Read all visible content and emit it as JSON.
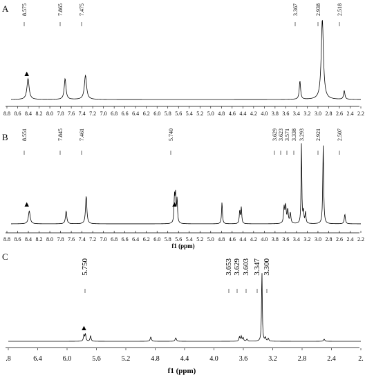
{
  "chart_data": [
    {
      "type": "line",
      "panel_label": "A",
      "xlabel": "",
      "x_range": [
        8.9,
        2.2
      ],
      "x_ticks": [
        "8.8",
        "8.6",
        "8.4",
        "8.2",
        "8.0",
        "7.8",
        "7.6",
        "7.4",
        "7.2",
        "7.0",
        "6.8",
        "6.6",
        "6.4",
        "6.2",
        "6.0",
        "5.8",
        "5.6",
        "5.4",
        "5.2",
        "5.0",
        "4.8",
        "4.6",
        "4.4",
        "4.2",
        "4.0",
        "3.8",
        "3.6",
        "3.4",
        "3.2",
        "3.0",
        "2.8",
        "2.6",
        "2.4",
        "2.2"
      ],
      "peak_labels": [
        "8.575",
        "7.865",
        "7.475",
        "3.367",
        "2.938",
        "2.518"
      ],
      "peaks": [
        {
          "ppm": 8.575,
          "height": 0.26,
          "width": 0.025
        },
        {
          "ppm": 7.865,
          "height": 0.26,
          "width": 0.02
        },
        {
          "ppm": 7.475,
          "height": 0.3,
          "width": 0.025
        },
        {
          "ppm": 3.367,
          "height": 0.23,
          "width": 0.015
        },
        {
          "ppm": 2.938,
          "height": 1.0,
          "width": 0.025
        },
        {
          "ppm": 2.518,
          "height": 0.11,
          "width": 0.015
        }
      ],
      "markers": [
        {
          "symbol": "▲",
          "ppm": 8.6
        }
      ]
    },
    {
      "type": "line",
      "panel_label": "B",
      "xlabel": "f1 (ppm)",
      "x_range": [
        8.9,
        2.2
      ],
      "x_ticks": [
        "8.8",
        "8.6",
        "8.4",
        "8.2",
        "8.0",
        "7.8",
        "7.6",
        "7.4",
        "7.2",
        "7.0",
        "6.8",
        "6.6",
        "6.4",
        "6.2",
        "6.0",
        "5.8",
        "5.6",
        "5.4",
        "5.2",
        "5.0",
        "4.8",
        "4.6",
        "4.4",
        "4.2",
        "4.0",
        "3.8",
        "3.6",
        "3.4",
        "3.2",
        "3.0",
        "2.8",
        "2.6",
        "2.4",
        "2.2"
      ],
      "peak_labels": [
        "8.551",
        "7.845",
        "7.461",
        "5.740",
        "3.629",
        "3.623",
        "3.571",
        "3.338",
        "3.293",
        "2.921",
        "2.507"
      ],
      "peaks": [
        {
          "ppm": 8.551,
          "height": 0.16,
          "width": 0.02
        },
        {
          "ppm": 7.845,
          "height": 0.16,
          "width": 0.015
        },
        {
          "ppm": 7.461,
          "height": 0.35,
          "width": 0.015
        },
        {
          "ppm": 5.77,
          "height": 0.32,
          "width": 0.01
        },
        {
          "ppm": 5.75,
          "height": 0.34,
          "width": 0.01
        },
        {
          "ppm": 5.72,
          "height": 0.3,
          "width": 0.01
        },
        {
          "ppm": 4.86,
          "height": 0.27,
          "width": 0.01
        },
        {
          "ppm": 4.52,
          "height": 0.16,
          "width": 0.01
        },
        {
          "ppm": 4.49,
          "height": 0.2,
          "width": 0.01
        },
        {
          "ppm": 3.67,
          "height": 0.2,
          "width": 0.012
        },
        {
          "ppm": 3.64,
          "height": 0.22,
          "width": 0.012
        },
        {
          "ppm": 3.6,
          "height": 0.17,
          "width": 0.012
        },
        {
          "ppm": 3.55,
          "height": 0.13,
          "width": 0.012
        },
        {
          "ppm": 3.338,
          "height": 1.0,
          "width": 0.008
        },
        {
          "ppm": 3.3,
          "height": 0.15,
          "width": 0.01
        },
        {
          "ppm": 3.26,
          "height": 0.14,
          "width": 0.01
        },
        {
          "ppm": 2.921,
          "height": 0.98,
          "width": 0.01
        },
        {
          "ppm": 2.507,
          "height": 0.12,
          "width": 0.012
        }
      ],
      "markers": [
        {
          "symbol": "▲",
          "ppm": 8.6
        },
        {
          "symbol": "▲",
          "ppm": 5.77
        }
      ]
    },
    {
      "type": "line",
      "panel_label": "C",
      "xlabel": "f1 (ppm)",
      "x_range": [
        6.8,
        2.0
      ],
      "x_ticks": [
        ".8",
        "6.4",
        "6.0",
        "5.6",
        "5.2",
        "4.8",
        "4.4",
        "4.0",
        "3.6",
        "3.2",
        "2.8",
        "2.4",
        "2."
      ],
      "peak_labels": [
        "5.750",
        "3.653",
        "3.629",
        "3.603",
        "3.347",
        "3.300"
      ],
      "peaks": [
        {
          "ppm": 5.77,
          "height": 0.09,
          "width": 0.008
        },
        {
          "ppm": 5.75,
          "height": 0.1,
          "width": 0.008
        },
        {
          "ppm": 5.68,
          "height": 0.08,
          "width": 0.008
        },
        {
          "ppm": 4.86,
          "height": 0.06,
          "width": 0.01
        },
        {
          "ppm": 4.52,
          "height": 0.05,
          "width": 0.01
        },
        {
          "ppm": 3.653,
          "height": 0.06,
          "width": 0.008
        },
        {
          "ppm": 3.629,
          "height": 0.07,
          "width": 0.008
        },
        {
          "ppm": 3.603,
          "height": 0.05,
          "width": 0.008
        },
        {
          "ppm": 3.55,
          "height": 0.03,
          "width": 0.01
        },
        {
          "ppm": 3.347,
          "height": 1.0,
          "width": 0.006
        },
        {
          "ppm": 3.3,
          "height": 0.05,
          "width": 0.008
        },
        {
          "ppm": 3.26,
          "height": 0.04,
          "width": 0.008
        },
        {
          "ppm": 2.5,
          "height": 0.03,
          "width": 0.01
        }
      ],
      "markers": [
        {
          "symbol": "▲",
          "ppm": 5.77
        }
      ]
    }
  ]
}
